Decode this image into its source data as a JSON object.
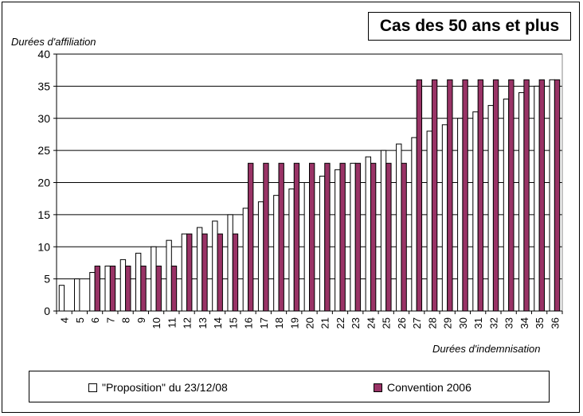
{
  "chart_data": {
    "type": "bar",
    "title": "Cas des 50 ans et plus",
    "ylabel": "Durées d'affiliation",
    "xlabel": "Durées d'indemnisation",
    "ylim": [
      0,
      40
    ],
    "yticks": [
      0,
      5,
      10,
      15,
      20,
      25,
      30,
      35,
      40
    ],
    "grid": true,
    "legend_position": "bottom",
    "categories": [
      "4",
      "5",
      "6",
      "7",
      "8",
      "9",
      "10",
      "11",
      "12",
      "13",
      "14",
      "15",
      "16",
      "17",
      "18",
      "19",
      "20",
      "21",
      "22",
      "23",
      "24",
      "25",
      "26",
      "27",
      "28",
      "29",
      "30",
      "31",
      "32",
      "33",
      "34",
      "35",
      "36"
    ],
    "series": [
      {
        "name": "\"Proposition\" du 23/12/08",
        "color": "#ffffff",
        "values": [
          4,
          5,
          6,
          7,
          8,
          9,
          10,
          11,
          12,
          13,
          14,
          15,
          16,
          17,
          18,
          19,
          20,
          21,
          22,
          23,
          24,
          25,
          26,
          27,
          28,
          29,
          30,
          31,
          32,
          33,
          34,
          35,
          36
        ]
      },
      {
        "name": "Convention 2006",
        "color": "#993366",
        "values": [
          0,
          0,
          7,
          7,
          7,
          7,
          7,
          7,
          12,
          12,
          12,
          12,
          23,
          23,
          23,
          23,
          23,
          23,
          23,
          23,
          23,
          23,
          23,
          36,
          36,
          36,
          36,
          36,
          36,
          36,
          36,
          36,
          36
        ]
      }
    ]
  }
}
